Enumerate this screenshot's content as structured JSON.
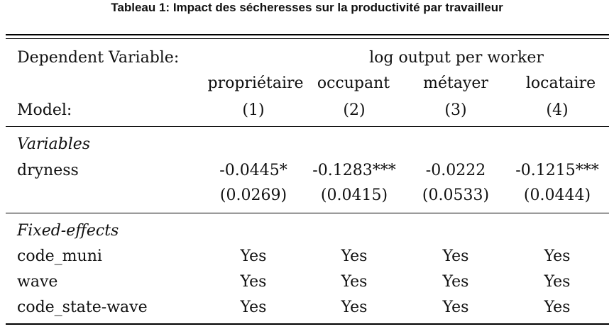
{
  "title": "Tableau 1: Impact des sécheresses sur la productivité par travailleur",
  "header": {
    "dependent_label": "Dependent Variable:",
    "dependent_value": "log output per worker",
    "column_groups": [
      "propriétaire",
      "occupant",
      "métayer",
      "locataire"
    ],
    "model_label": "Model:",
    "models": [
      "(1)",
      "(2)",
      "(3)",
      "(4)"
    ]
  },
  "variables": {
    "section_label": "Variables",
    "rows": [
      {
        "label": "dryness",
        "coefficients": [
          "-0.0445*",
          "-0.1283***",
          "-0.0222",
          "-0.1215***"
        ],
        "std_errors": [
          "(0.0269)",
          "(0.0415)",
          "(0.0533)",
          "(0.0444)"
        ]
      }
    ]
  },
  "fixed_effects": {
    "section_label": "Fixed-effects",
    "rows": [
      {
        "label": "code_muni",
        "values": [
          "Yes",
          "Yes",
          "Yes",
          "Yes"
        ]
      },
      {
        "label": "wave",
        "values": [
          "Yes",
          "Yes",
          "Yes",
          "Yes"
        ]
      },
      {
        "label": "code_state-wave",
        "values": [
          "Yes",
          "Yes",
          "Yes",
          "Yes"
        ]
      }
    ]
  }
}
